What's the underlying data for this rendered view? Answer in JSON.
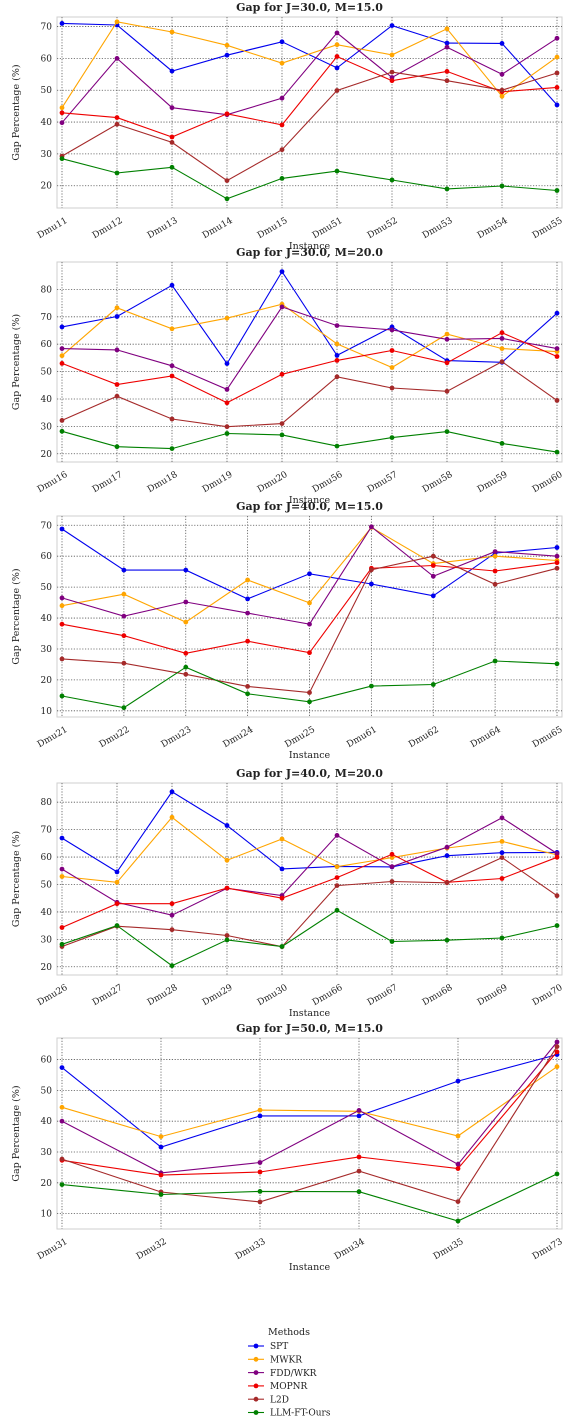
{
  "colors": {
    "SPT": "#0000ee",
    "MWKR": "#ffa500",
    "FDD/WKR": "#800080",
    "MOPNR": "#ee0000",
    "L2D": "#a52a2a",
    "LLM-FT-Ours": "#008000"
  },
  "legend": {
    "title": "Methods",
    "entries": [
      "SPT",
      "MWKR",
      "FDD/WKR",
      "MOPNR",
      "L2D",
      "LLM-FT-Ours"
    ]
  },
  "chart_data": [
    {
      "type": "line",
      "title": "Gap for J=30.0, M=15.0",
      "xlabel": "Instance",
      "ylabel": "Gap Percentage (%)",
      "ylim": [
        13,
        73
      ],
      "yticks": [
        20,
        30,
        40,
        50,
        60,
        70
      ],
      "grid": true,
      "categories": [
        "Dmu11",
        "Dmu12",
        "Dmu13",
        "Dmu14",
        "Dmu15",
        "Dmu51",
        "Dmu52",
        "Dmu53",
        "Dmu54",
        "Dmu55"
      ],
      "series": [
        {
          "name": "SPT",
          "values": [
            71.0,
            70.5,
            56.0,
            61.0,
            65.2,
            57.0,
            70.3,
            64.8,
            64.7,
            45.4
          ]
        },
        {
          "name": "MWKR",
          "values": [
            44.5,
            71.5,
            68.3,
            64.1,
            58.5,
            64.3,
            61.1,
            69.3,
            48.1,
            60.4
          ]
        },
        {
          "name": "FDD/WKR",
          "values": [
            39.8,
            60.0,
            44.5,
            42.3,
            47.5,
            68.0,
            54.0,
            63.5,
            55.0,
            66.3
          ]
        },
        {
          "name": "MOPNR",
          "values": [
            42.9,
            41.4,
            35.3,
            42.6,
            39.1,
            60.6,
            53.0,
            55.9,
            49.5,
            50.9
          ]
        },
        {
          "name": "L2D",
          "values": [
            29.3,
            39.3,
            33.6,
            21.6,
            31.3,
            49.9,
            55.7,
            53.0,
            50.0,
            55.4
          ]
        },
        {
          "name": "LLM-FT-Ours",
          "values": [
            28.5,
            24.0,
            25.8,
            15.9,
            22.3,
            24.6,
            21.8,
            19.0,
            19.9,
            18.5
          ]
        }
      ]
    },
    {
      "type": "line",
      "title": "Gap for J=30.0, M=20.0",
      "xlabel": "Instance",
      "ylabel": "Gap Percentage (%)",
      "ylim": [
        17,
        90
      ],
      "yticks": [
        20,
        30,
        40,
        50,
        60,
        70,
        80
      ],
      "grid": true,
      "categories": [
        "Dmu16",
        "Dmu17",
        "Dmu18",
        "Dmu19",
        "Dmu20",
        "Dmu56",
        "Dmu57",
        "Dmu58",
        "Dmu59",
        "Dmu60"
      ],
      "series": [
        {
          "name": "SPT",
          "values": [
            66.3,
            70.1,
            81.5,
            52.9,
            86.5,
            55.9,
            66.3,
            54.0,
            53.4,
            71.3
          ]
        },
        {
          "name": "MWKR",
          "values": [
            55.8,
            73.3,
            65.6,
            69.5,
            74.6,
            60.1,
            51.5,
            63.7,
            58.4,
            57.3
          ]
        },
        {
          "name": "FDD/WKR",
          "values": [
            58.4,
            57.9,
            52.1,
            43.5,
            73.6,
            66.8,
            65.2,
            61.8,
            62.1,
            58.4
          ]
        },
        {
          "name": "MOPNR",
          "values": [
            53.0,
            45.3,
            48.4,
            38.6,
            49.0,
            54.1,
            57.7,
            53.2,
            64.2,
            55.5
          ]
        },
        {
          "name": "L2D",
          "values": [
            32.2,
            41.0,
            32.7,
            29.9,
            31.0,
            48.1,
            44.0,
            42.8,
            53.6,
            39.5
          ]
        },
        {
          "name": "LLM-FT-Ours",
          "values": [
            28.2,
            22.6,
            21.9,
            27.4,
            26.9,
            22.8,
            25.9,
            28.1,
            23.8,
            20.6
          ]
        }
      ]
    },
    {
      "type": "line",
      "title": "Gap for J=40.0, M=15.0",
      "xlabel": "Instance",
      "ylabel": "Gap Percentage (%)",
      "ylim": [
        8,
        73
      ],
      "yticks": [
        10,
        20,
        30,
        40,
        50,
        60,
        70
      ],
      "grid": true,
      "categories": [
        "Dmu21",
        "Dmu22",
        "Dmu23",
        "Dmu24",
        "Dmu25",
        "Dmu61",
        "Dmu62",
        "Dmu64",
        "Dmu65"
      ],
      "series": [
        {
          "name": "SPT",
          "values": [
            68.8,
            55.5,
            55.5,
            46.2,
            54.3,
            51.0,
            47.2,
            61.0,
            62.8
          ]
        },
        {
          "name": "MWKR",
          "values": [
            44.0,
            47.7,
            38.7,
            52.3,
            44.9,
            69.3,
            57.6,
            60.0,
            58.6
          ]
        },
        {
          "name": "FDD/WKR",
          "values": [
            46.5,
            40.6,
            45.2,
            41.6,
            38.0,
            69.5,
            53.5,
            61.5,
            60.0
          ]
        },
        {
          "name": "MOPNR",
          "values": [
            38.0,
            34.3,
            28.6,
            32.5,
            28.8,
            56.1,
            57.0,
            55.2,
            57.9
          ]
        },
        {
          "name": "L2D",
          "values": [
            26.8,
            25.4,
            21.8,
            17.9,
            15.9,
            55.6,
            60.0,
            50.9,
            56.1
          ]
        },
        {
          "name": "LLM-FT-Ours",
          "values": [
            14.8,
            11.0,
            24.1,
            15.5,
            12.9,
            18.0,
            18.5,
            26.1,
            25.2
          ]
        }
      ]
    },
    {
      "type": "line",
      "title": "Gap for J=40.0, M=20.0",
      "xlabel": "Instance",
      "ylabel": "Gap Percentage (%)",
      "ylim": [
        17,
        87
      ],
      "yticks": [
        20,
        30,
        40,
        50,
        60,
        70,
        80
      ],
      "grid": true,
      "categories": [
        "Dmu26",
        "Dmu27",
        "Dmu28",
        "Dmu29",
        "Dmu30",
        "Dmu66",
        "Dmu67",
        "Dmu68",
        "Dmu69",
        "Dmu70"
      ],
      "series": [
        {
          "name": "SPT",
          "values": [
            66.9,
            54.6,
            83.8,
            71.5,
            55.7,
            56.6,
            56.4,
            60.5,
            61.6,
            61.7
          ]
        },
        {
          "name": "MWKR",
          "values": [
            52.9,
            50.8,
            74.5,
            58.8,
            66.6,
            56.5,
            59.8,
            63.3,
            65.7,
            60.8
          ]
        },
        {
          "name": "FDD/WKR",
          "values": [
            55.6,
            43.5,
            38.8,
            48.6,
            46.0,
            67.9,
            56.5,
            63.6,
            74.3,
            61.3
          ]
        },
        {
          "name": "MOPNR",
          "values": [
            34.3,
            43.0,
            43.0,
            48.7,
            45.0,
            52.5,
            61.0,
            50.8,
            52.2,
            59.9
          ]
        },
        {
          "name": "L2D",
          "values": [
            27.4,
            34.8,
            33.5,
            31.4,
            27.3,
            49.6,
            51.1,
            50.6,
            59.8,
            45.9
          ]
        },
        {
          "name": "LLM-FT-Ours",
          "values": [
            28.2,
            35.0,
            20.4,
            29.8,
            27.4,
            40.6,
            29.2,
            29.7,
            30.5,
            35.0
          ]
        }
      ]
    },
    {
      "type": "line",
      "title": "Gap for J=50.0, M=15.0",
      "xlabel": "Instance",
      "ylabel": "Gap Percentage (%)",
      "ylim": [
        5,
        67
      ],
      "yticks": [
        10,
        20,
        30,
        40,
        50,
        60
      ],
      "grid": true,
      "categories": [
        "Dmu31",
        "Dmu32",
        "Dmu33",
        "Dmu34",
        "Dmu35",
        "Dmu73"
      ],
      "series": [
        {
          "name": "SPT",
          "values": [
            57.4,
            31.6,
            41.7,
            41.7,
            53.0,
            61.6
          ]
        },
        {
          "name": "MWKR",
          "values": [
            44.5,
            35.0,
            43.6,
            43.2,
            35.2,
            57.7
          ]
        },
        {
          "name": "FDD/WKR",
          "values": [
            40.0,
            23.2,
            26.6,
            43.5,
            26.0,
            65.7
          ]
        },
        {
          "name": "MOPNR",
          "values": [
            27.3,
            22.5,
            23.5,
            28.4,
            24.6,
            62.5
          ]
        },
        {
          "name": "L2D",
          "values": [
            27.7,
            17.0,
            13.8,
            23.8,
            13.9,
            64.2
          ]
        },
        {
          "name": "LLM-FT-Ours",
          "values": [
            19.4,
            16.2,
            17.2,
            17.1,
            7.6,
            22.9
          ]
        }
      ]
    }
  ]
}
